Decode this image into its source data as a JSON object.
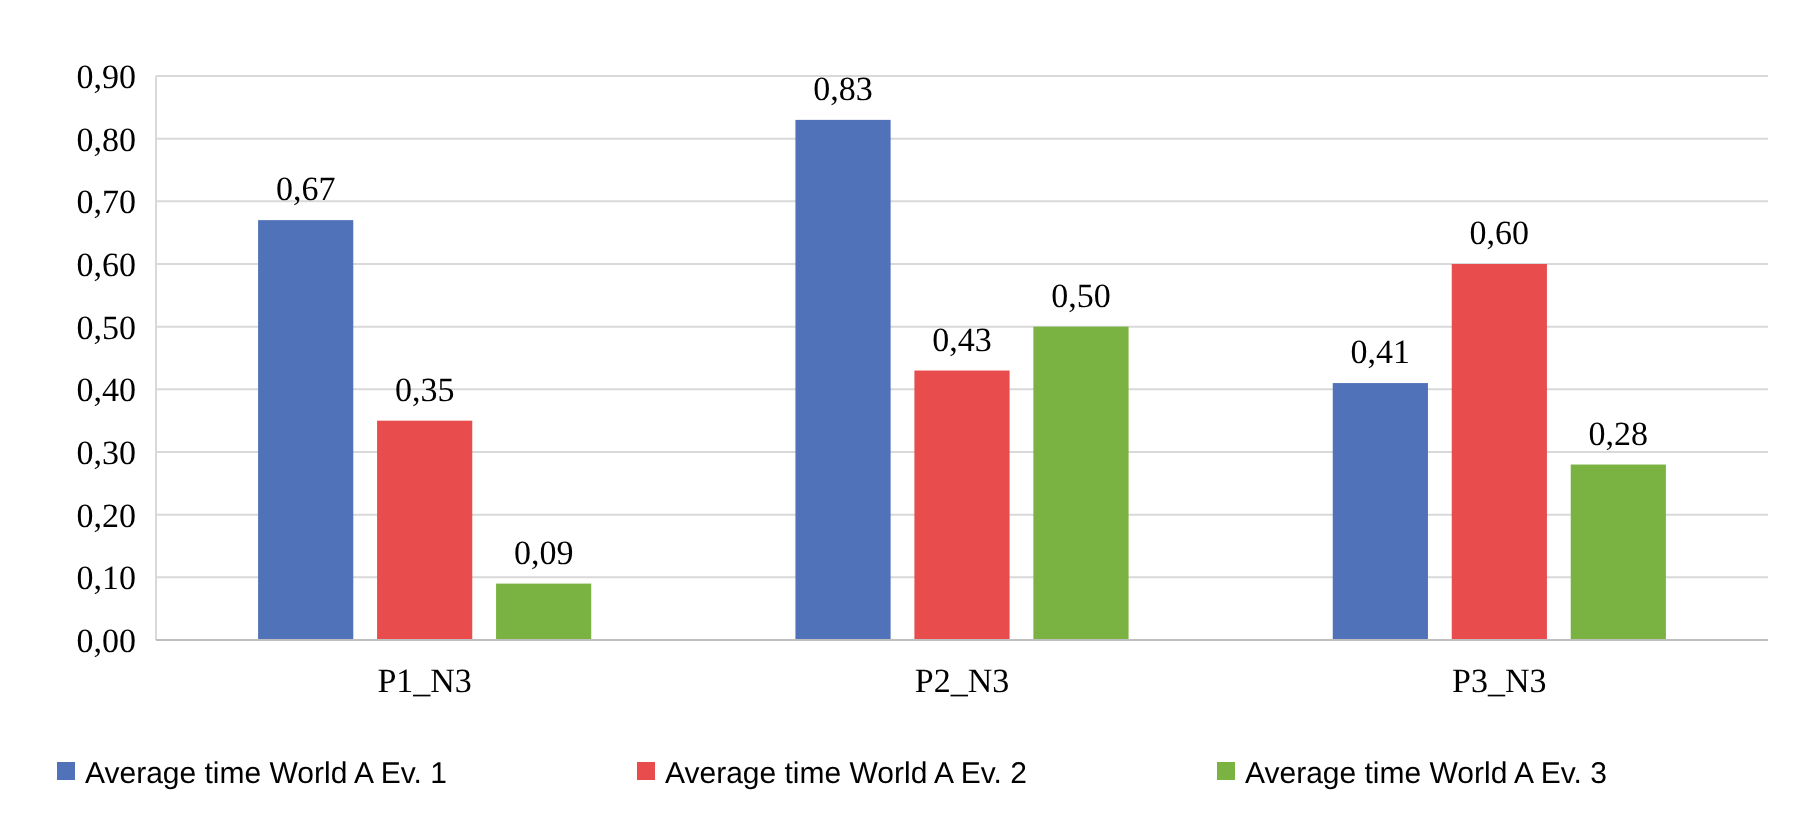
{
  "chart_data": {
    "type": "bar",
    "categories": [
      "P1_N3",
      "P2_N3",
      "P3_N3"
    ],
    "series": [
      {
        "name": "Average time World A Ev. 1",
        "color": "#4f72b8",
        "values": [
          0.67,
          0.83,
          0.41
        ],
        "value_labels": [
          "0,67",
          "0,83",
          "0,41"
        ]
      },
      {
        "name": "Average time World A Ev. 2",
        "color": "#e84c4c",
        "values": [
          0.35,
          0.43,
          0.6
        ],
        "value_labels": [
          "0,35",
          "0,43",
          "0,60"
        ]
      },
      {
        "name": "Average time World A Ev. 3",
        "color": "#7bb342",
        "values": [
          0.09,
          0.5,
          0.28
        ],
        "value_labels": [
          "0,09",
          "0,50",
          "0,28"
        ]
      }
    ],
    "ylim": [
      0,
      0.9
    ],
    "yticks": [
      {
        "value": 0,
        "label": "0,00"
      },
      {
        "value": 0.1,
        "label": "0,10"
      },
      {
        "value": 0.2,
        "label": "0,20"
      },
      {
        "value": 0.3,
        "label": "0,30"
      },
      {
        "value": 0.4,
        "label": "0,40"
      },
      {
        "value": 0.5,
        "label": "0,50"
      },
      {
        "value": 0.6,
        "label": "0,60"
      },
      {
        "value": 0.7,
        "label": "0,70"
      },
      {
        "value": 0.8,
        "label": "0,80"
      },
      {
        "value": 0.9,
        "label": "0,90"
      }
    ],
    "grid": "y",
    "legend": "bottom"
  }
}
